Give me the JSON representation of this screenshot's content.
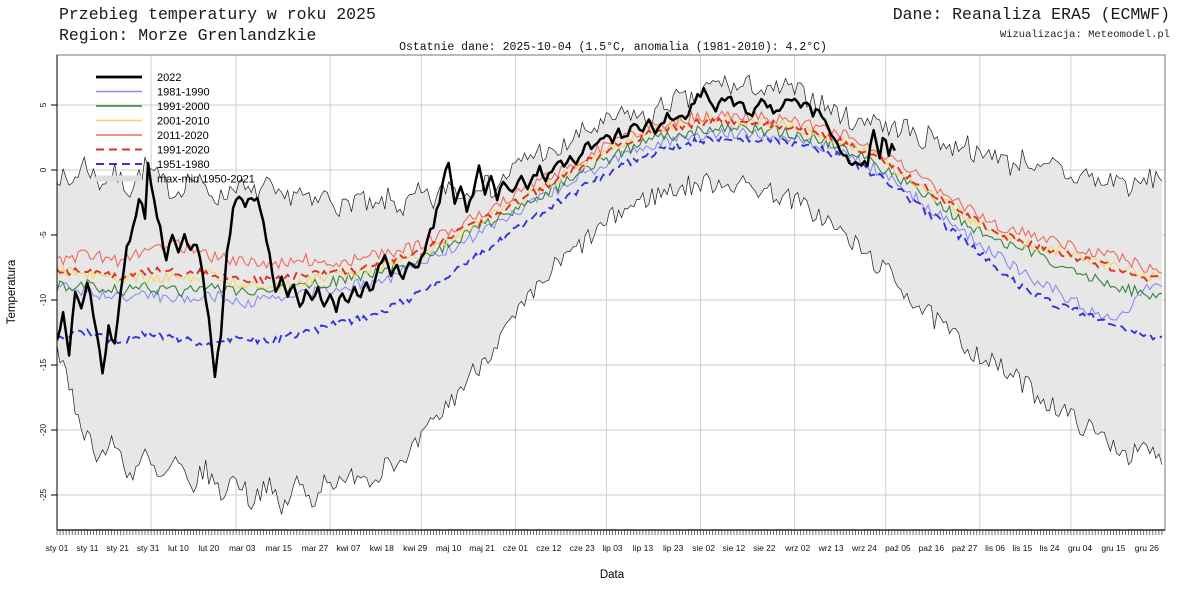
{
  "header": {
    "title": "Przebieg temperatury w roku 2025",
    "subtitle": "Region: Morze Grenlandzkie",
    "source": "Dane: Reanaliza ERA5 (ECMWF)",
    "credit": "Wizualizacja: Meteomodel.pl",
    "annotation": "Ostatnie dane: 2025-10-04 (1.5°C, anomalia (1981-2010): 4.2°C)"
  },
  "chart_data": {
    "type": "line",
    "title": "Przebieg temperatury w roku 2025",
    "region": "Morze Grenlandzkie",
    "xlabel": "Data",
    "ylabel": "Temperatura",
    "x_unit": "day_of_year",
    "xlim_days": [
      1,
      366
    ],
    "ylim": [
      -27.7,
      8.8
    ],
    "yticks": [
      5,
      0,
      -5,
      -10,
      -15,
      -20,
      -25
    ],
    "grid": {
      "horizontal_at": [
        5,
        0,
        -5,
        -10,
        -15,
        -20,
        -25
      ],
      "vertical_month_start_days": [
        32,
        60,
        91,
        121,
        152,
        182,
        213,
        244,
        274,
        305,
        335
      ],
      "color": "#cccccc"
    },
    "xticks": [
      {
        "label": "sty 01",
        "day": 1
      },
      {
        "label": "sty 11",
        "day": 11
      },
      {
        "label": "sty 21",
        "day": 21
      },
      {
        "label": "sty 31",
        "day": 31
      },
      {
        "label": "lut 10",
        "day": 41
      },
      {
        "label": "lut 20",
        "day": 51
      },
      {
        "label": "mar 03",
        "day": 62
      },
      {
        "label": "mar 15",
        "day": 74
      },
      {
        "label": "mar 27",
        "day": 86
      },
      {
        "label": "kwi 07",
        "day": 97
      },
      {
        "label": "kwi 18",
        "day": 108
      },
      {
        "label": "kwi 29",
        "day": 119
      },
      {
        "label": "maj 10",
        "day": 130
      },
      {
        "label": "maj 21",
        "day": 141
      },
      {
        "label": "cze 01",
        "day": 152
      },
      {
        "label": "cze 12",
        "day": 163
      },
      {
        "label": "cze 23",
        "day": 174
      },
      {
        "label": "lip 03",
        "day": 184
      },
      {
        "label": "lip 13",
        "day": 194
      },
      {
        "label": "lip 23",
        "day": 204
      },
      {
        "label": "sie 02",
        "day": 214
      },
      {
        "label": "sie 12",
        "day": 224
      },
      {
        "label": "sie 22",
        "day": 234
      },
      {
        "label": "wrz 02",
        "day": 245
      },
      {
        "label": "wrz 13",
        "day": 256
      },
      {
        "label": "wrz 24",
        "day": 267
      },
      {
        "label": "paź 05",
        "day": 278
      },
      {
        "label": "paź 16",
        "day": 289
      },
      {
        "label": "paź 27",
        "day": 300
      },
      {
        "label": "lis 06",
        "day": 310
      },
      {
        "label": "lis 15",
        "day": 319
      },
      {
        "label": "lis 24",
        "day": 328
      },
      {
        "label": "gru 04",
        "day": 338
      },
      {
        "label": "gru 15",
        "day": 349
      },
      {
        "label": "gru 26",
        "day": 360
      }
    ],
    "legend": [
      {
        "label": "2022",
        "color": "#000000",
        "style": "solid",
        "width": 2.8
      },
      {
        "label": "1981-1990",
        "color": "#8a8af0",
        "style": "solid",
        "width": 1.4
      },
      {
        "label": "1991-2000",
        "color": "#35823c",
        "style": "solid",
        "width": 1.4
      },
      {
        "label": "2001-2010",
        "color": "#f0d85a",
        "style": "solid",
        "width": 1.4
      },
      {
        "label": "2011-2020",
        "color": "#ee6a60",
        "style": "solid",
        "width": 1.4
      },
      {
        "label": "1991-2020",
        "color": "#e03028",
        "style": "dashed",
        "width": 2.0
      },
      {
        "label": "1951-1980",
        "color": "#3434dd",
        "style": "dashed",
        "width": 2.0
      },
      {
        "label": "max-min 1950-2021",
        "color": "#dedede",
        "style": "band",
        "width": 6
      }
    ],
    "band": {
      "name": "max-min 1950-2021",
      "fill": "#e7e7e7",
      "outline": "#1c1c1c",
      "days": [
        1,
        5,
        10,
        15,
        20,
        25,
        30,
        35,
        40,
        45,
        50,
        55,
        60,
        65,
        70,
        75,
        80,
        85,
        90,
        95,
        100,
        105,
        110,
        115,
        120,
        125,
        130,
        135,
        140,
        145,
        150,
        155,
        160,
        165,
        170,
        175,
        180,
        185,
        190,
        195,
        200,
        205,
        210,
        215,
        220,
        225,
        230,
        235,
        240,
        245,
        250,
        255,
        260,
        265,
        270,
        275,
        280,
        285,
        290,
        295,
        300,
        305,
        310,
        315,
        320,
        325,
        330,
        335,
        340,
        345,
        350,
        355,
        360,
        365
      ],
      "upper": [
        -0.2,
        -1.2,
        0.6,
        -1.0,
        -0.3,
        -1.5,
        0.3,
        -0.8,
        -1.8,
        -0.5,
        -1.5,
        -2.2,
        -1.0,
        -2.0,
        -1.2,
        -2.5,
        -1.5,
        -2.8,
        -1.8,
        -3.0,
        -2.0,
        -3.2,
        -2.2,
        -3.0,
        -1.8,
        -2.5,
        -1.0,
        -2.0,
        -0.8,
        -1.5,
        -0.2,
        0.8,
        1.5,
        1.0,
        2.2,
        3.0,
        3.3,
        4.0,
        4.4,
        3.8,
        4.8,
        5.5,
        5.2,
        6.3,
        6.8,
        6.2,
        6.6,
        5.8,
        6.4,
        6.0,
        5.5,
        4.8,
        4.2,
        3.5,
        4.3,
        3.0,
        3.5,
        2.2,
        2.8,
        1.5,
        2.3,
        0.8,
        1.5,
        0.3,
        1.0,
        -0.3,
        0.5,
        -0.8,
        -0.2,
        -1.2,
        -0.5,
        -1.5,
        -0.8,
        -0.4
      ],
      "lower": [
        -13.5,
        -17.0,
        -20.0,
        -22.0,
        -21.0,
        -23.5,
        -22.0,
        -24.0,
        -22.5,
        -24.5,
        -23.0,
        -25.0,
        -23.5,
        -25.5,
        -24.0,
        -26.3,
        -24.0,
        -25.5,
        -23.5,
        -24.5,
        -23.0,
        -24.0,
        -22.0,
        -23.0,
        -21.0,
        -19.5,
        -18.0,
        -16.5,
        -15.0,
        -13.5,
        -12.0,
        -10.5,
        -9.0,
        -7.5,
        -6.5,
        -5.5,
        -4.5,
        -3.5,
        -2.8,
        -2.2,
        -1.8,
        -1.4,
        -1.2,
        -1.0,
        -0.9,
        -1.1,
        -1.3,
        -1.6,
        -2.0,
        -2.5,
        -3.2,
        -4.0,
        -5.0,
        -6.0,
        -7.0,
        -8.0,
        -9.2,
        -10.5,
        -11.5,
        -12.5,
        -13.5,
        -14.2,
        -15.0,
        -15.8,
        -16.5,
        -17.5,
        -18.2,
        -19.0,
        -19.8,
        -20.5,
        -21.2,
        -22.0,
        -21.5,
        -22.5
      ]
    },
    "mean_days": [
      1,
      11,
      21,
      31,
      41,
      51,
      61,
      71,
      81,
      91,
      101,
      111,
      121,
      131,
      141,
      151,
      161,
      171,
      181,
      191,
      201,
      211,
      221,
      231,
      241,
      251,
      261,
      271,
      281,
      291,
      301,
      311,
      321,
      331,
      341,
      351,
      361,
      365
    ],
    "series": [
      {
        "name": "1981-1990",
        "color": "#8a8af0",
        "style": "solid",
        "noise": "solid",
        "values": [
          -8.8,
          -9.4,
          -9.8,
          -9.5,
          -10.0,
          -9.6,
          -10.2,
          -10.0,
          -9.6,
          -9.2,
          -8.8,
          -8.2,
          -7.2,
          -6.0,
          -4.8,
          -3.4,
          -2.1,
          -0.8,
          0.4,
          1.5,
          2.2,
          2.7,
          2.9,
          2.8,
          2.6,
          2.0,
          1.2,
          0.0,
          -1.6,
          -3.4,
          -5.0,
          -6.6,
          -8.2,
          -9.4,
          -10.8,
          -11.5,
          -9.0,
          -8.6
        ]
      },
      {
        "name": "1991-2000",
        "color": "#35823c",
        "style": "solid",
        "noise": "solid",
        "values": [
          -9.0,
          -8.8,
          -9.3,
          -9.0,
          -9.4,
          -9.1,
          -9.5,
          -9.3,
          -9.0,
          -8.6,
          -8.2,
          -7.6,
          -6.8,
          -5.6,
          -4.4,
          -3.1,
          -1.9,
          -0.6,
          0.7,
          1.8,
          2.5,
          3.0,
          3.2,
          3.1,
          2.9,
          2.4,
          1.6,
          0.4,
          -1.0,
          -2.6,
          -4.2,
          -5.6,
          -6.2,
          -7.4,
          -8.2,
          -9.0,
          -9.6,
          -9.7
        ]
      },
      {
        "name": "2001-2010",
        "color": "#f0d85a",
        "style": "solid",
        "noise": "solid",
        "values": [
          -7.6,
          -7.9,
          -8.4,
          -8.2,
          -8.4,
          -8.0,
          -8.8,
          -9.0,
          -8.5,
          -8.2,
          -7.8,
          -7.2,
          -6.4,
          -5.2,
          -4.0,
          -2.6,
          -1.4,
          0.0,
          1.3,
          2.4,
          3.2,
          3.7,
          3.9,
          3.7,
          3.5,
          2.9,
          2.1,
          1.0,
          -0.5,
          -2.2,
          -3.6,
          -5.0,
          -5.8,
          -6.2,
          -6.8,
          -7.4,
          -8.1,
          -8.2
        ]
      },
      {
        "name": "2011-2020",
        "color": "#ee6a60",
        "style": "solid",
        "noise": "solid",
        "values": [
          -7.1,
          -6.4,
          -7.0,
          -6.0,
          -5.8,
          -6.6,
          -7.0,
          -7.3,
          -6.8,
          -7.2,
          -6.8,
          -6.3,
          -5.8,
          -4.6,
          -3.4,
          -2.0,
          -0.8,
          0.5,
          1.8,
          2.9,
          3.6,
          4.1,
          4.3,
          4.1,
          3.9,
          3.4,
          2.7,
          1.6,
          0.2,
          -1.6,
          -3.0,
          -4.3,
          -4.8,
          -5.5,
          -6.2,
          -6.8,
          -7.6,
          -7.8
        ]
      },
      {
        "name": "1991-2020",
        "color": "#e03028",
        "style": "dashed",
        "noise": "dashed",
        "values": [
          -7.9,
          -7.7,
          -8.2,
          -7.7,
          -7.9,
          -7.9,
          -8.4,
          -8.5,
          -8.1,
          -8.0,
          -7.6,
          -7.0,
          -6.3,
          -5.1,
          -3.9,
          -2.6,
          -1.4,
          0.0,
          1.3,
          2.4,
          3.1,
          3.6,
          3.8,
          3.6,
          3.4,
          2.9,
          2.1,
          1.0,
          -0.4,
          -2.1,
          -3.5,
          -4.9,
          -5.6,
          -6.3,
          -7.0,
          -7.7,
          -8.3,
          -8.4
        ]
      },
      {
        "name": "1951-1980",
        "color": "#3434dd",
        "style": "dashed",
        "noise": "dashed",
        "values": [
          -12.8,
          -12.5,
          -13.2,
          -12.6,
          -13.0,
          -13.4,
          -12.8,
          -13.2,
          -12.6,
          -12.0,
          -11.4,
          -10.6,
          -9.4,
          -8.0,
          -6.4,
          -4.8,
          -3.2,
          -1.8,
          -0.4,
          0.8,
          1.6,
          2.2,
          2.5,
          2.4,
          2.2,
          1.7,
          0.9,
          -0.4,
          -2.0,
          -3.8,
          -5.6,
          -7.6,
          -9.4,
          -10.4,
          -11.2,
          -12.0,
          -12.9,
          -13.0
        ]
      }
    ],
    "current_year": {
      "name": "2022",
      "color": "#000000",
      "last_date": "2025-10-04",
      "last_value_c": 1.5,
      "anomaly_1981_2010_c": 4.2,
      "days": [
        1,
        3,
        5,
        7,
        9,
        11,
        13,
        16,
        18,
        20,
        22,
        24,
        26,
        28,
        30,
        31,
        33,
        35,
        37,
        39,
        41,
        43,
        45,
        47,
        49,
        51,
        53,
        55,
        57,
        59,
        61,
        63,
        65,
        67,
        69,
        71,
        73,
        75,
        77,
        79,
        81,
        83,
        85,
        87,
        89,
        91,
        93,
        95,
        97,
        99,
        101,
        103,
        105,
        107,
        109,
        111,
        113,
        115,
        117,
        119,
        121,
        123,
        125,
        127,
        129,
        130,
        132,
        134,
        136,
        138,
        140,
        142,
        144,
        146,
        148,
        150,
        152,
        154,
        156,
        158,
        160,
        162,
        164,
        166,
        168,
        170,
        172,
        174,
        176,
        178,
        180,
        182,
        184,
        186,
        188,
        190,
        192,
        194,
        196,
        198,
        200,
        202,
        204,
        206,
        208,
        210,
        212,
        214,
        216,
        218,
        220,
        222,
        224,
        226,
        228,
        230,
        232,
        234,
        236,
        238,
        240,
        242,
        244,
        246,
        248,
        250,
        252,
        254,
        256,
        258,
        260,
        262,
        264,
        266,
        268,
        270,
        271,
        272,
        273,
        274,
        275,
        276,
        277
      ],
      "values": [
        -13.0,
        -11.2,
        -14.5,
        -9.2,
        -10.6,
        -8.6,
        -11.0,
        -15.7,
        -12.0,
        -13.6,
        -9.5,
        -6.0,
        -4.5,
        -2.0,
        -3.8,
        0.8,
        -2.5,
        -4.5,
        -6.8,
        -5.2,
        -6.6,
        -5.0,
        -6.4,
        -5.6,
        -8.0,
        -11.5,
        -15.8,
        -12.5,
        -6.5,
        -3.0,
        -1.8,
        -2.6,
        -1.9,
        -2.4,
        -4.0,
        -6.5,
        -9.3,
        -8.2,
        -9.8,
        -9.0,
        -10.4,
        -9.4,
        -10.0,
        -9.2,
        -10.6,
        -9.6,
        -10.8,
        -9.4,
        -10.2,
        -9.0,
        -9.8,
        -8.6,
        -9.4,
        -7.6,
        -6.6,
        -8.4,
        -7.2,
        -8.6,
        -7.0,
        -7.8,
        -6.8,
        -5.4,
        -4.2,
        -2.4,
        -0.2,
        0.5,
        -2.6,
        -1.4,
        -3.0,
        -1.8,
        0.2,
        -1.6,
        -0.6,
        -2.2,
        -1.0,
        -1.8,
        -1.2,
        -0.4,
        -1.4,
        -0.6,
        0.2,
        -0.8,
        0.0,
        0.8,
        0.2,
        1.0,
        0.4,
        1.4,
        2.2,
        1.6,
        2.4,
        2.8,
        2.2,
        3.0,
        2.4,
        3.2,
        3.6,
        2.8,
        3.8,
        3.0,
        3.6,
        4.2,
        3.8,
        4.4,
        4.0,
        5.0,
        5.6,
        6.0,
        5.4,
        4.8,
        5.4,
        5.8,
        5.2,
        5.5,
        4.6,
        4.4,
        5.0,
        5.4,
        4.8,
        4.4,
        5.0,
        5.3,
        5.5,
        4.9,
        5.2,
        4.4,
        4.8,
        3.6,
        2.6,
        1.8,
        1.0,
        0.7,
        0.5,
        0.4,
        0.6,
        3.2,
        1.8,
        1.1,
        2.3,
        2.0,
        1.2,
        1.9,
        1.5
      ]
    },
    "render": {
      "seed": 7,
      "noise_amp": {
        "band": 0.85,
        "solid": 0.45,
        "dashed": 0.3,
        "current": 0.3
      }
    }
  }
}
